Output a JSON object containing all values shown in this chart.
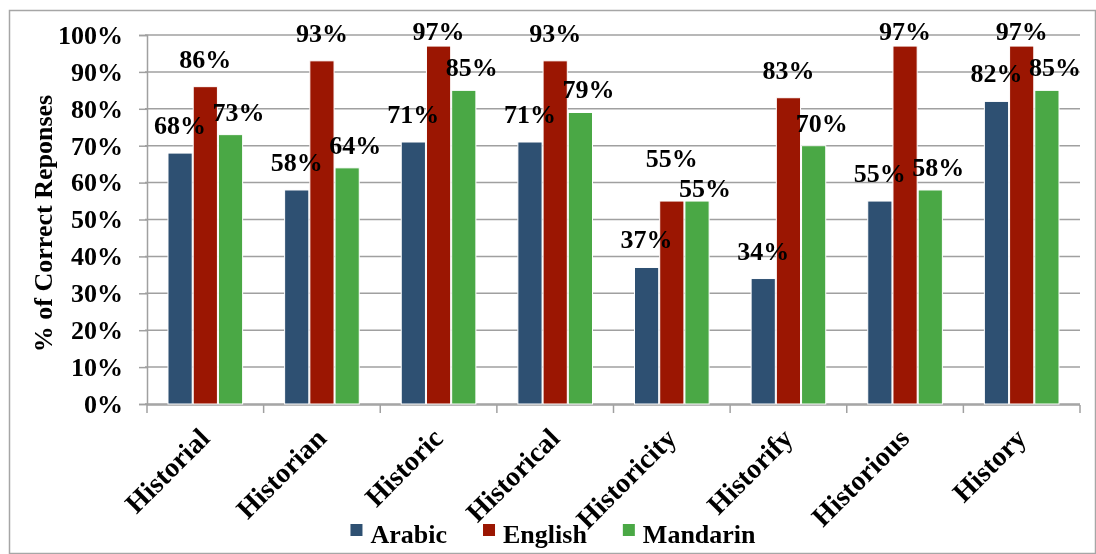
{
  "chart_data": {
    "type": "bar",
    "ylabel": "% of Correct Reponses",
    "categories": [
      "Historial",
      "Historian",
      "Historic",
      "Historical",
      "Historicity",
      "Historify",
      "Historious",
      "History"
    ],
    "series": [
      {
        "name": "Arabic",
        "color": "#2e5072",
        "values": [
          68,
          58,
          71,
          71,
          37,
          34,
          55,
          82
        ],
        "value_labels": [
          "68%",
          "58%",
          "71%",
          "71%",
          "37%",
          "34%",
          "55%",
          "82%"
        ]
      },
      {
        "name": "English",
        "color": "#9b1602",
        "values": [
          86,
          93,
          97,
          93,
          55,
          83,
          97,
          97
        ],
        "value_labels": [
          "86%",
          "93%",
          "97%",
          "93%",
          "55%",
          "83%",
          "97%",
          "97%"
        ]
      },
      {
        "name": "Mandarin",
        "color": "#4aa845",
        "values": [
          73,
          64,
          85,
          79,
          55,
          70,
          58,
          85
        ],
        "value_labels": [
          "73%",
          "64%",
          "85%",
          "79%",
          "55%",
          "70%",
          "58%",
          "85%"
        ]
      }
    ],
    "ylim": [
      0,
      100
    ],
    "yticks": [
      {
        "value": 0,
        "label": "0%"
      },
      {
        "value": 10,
        "label": "10%"
      },
      {
        "value": 20,
        "label": "20%"
      },
      {
        "value": 30,
        "label": "30%"
      },
      {
        "value": 40,
        "label": "40%"
      },
      {
        "value": 50,
        "label": "50%"
      },
      {
        "value": 60,
        "label": "60%"
      },
      {
        "value": 70,
        "label": "70%"
      },
      {
        "value": 80,
        "label": "80%"
      },
      {
        "value": 90,
        "label": "90%"
      },
      {
        "value": 100,
        "label": "100%"
      }
    ],
    "grid": "y",
    "legend": "bottom"
  }
}
